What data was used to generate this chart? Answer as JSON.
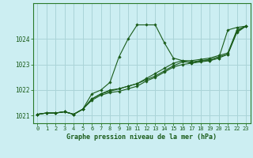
{
  "title": "Graphe pression niveau de la mer (hPa)",
  "background_color": "#cceef2",
  "grid_color": "#aad4d8",
  "line_color": "#1a5c1a",
  "marker_color": "#1a5c1a",
  "xlim": [
    -0.5,
    23.5
  ],
  "ylim": [
    1020.7,
    1025.4
  ],
  "yticks": [
    1021,
    1022,
    1023,
    1024
  ],
  "xticks": [
    0,
    1,
    2,
    3,
    4,
    5,
    6,
    7,
    8,
    9,
    10,
    11,
    12,
    13,
    14,
    15,
    16,
    17,
    18,
    19,
    20,
    21,
    22,
    23
  ],
  "series": [
    [
      1021.05,
      1021.1,
      1021.1,
      1021.15,
      1021.05,
      1021.25,
      1021.85,
      1022.0,
      1022.3,
      1023.3,
      1024.0,
      1024.55,
      1024.55,
      1024.55,
      1023.85,
      1023.25,
      1023.15,
      1023.05,
      1023.15,
      1023.15,
      1023.25,
      1024.35,
      1024.45,
      1024.5
    ],
    [
      1021.05,
      1021.1,
      1021.1,
      1021.15,
      1021.05,
      1021.25,
      1021.65,
      1021.85,
      1022.0,
      1022.05,
      1022.15,
      1022.25,
      1022.45,
      1022.65,
      1022.85,
      1023.05,
      1023.15,
      1023.15,
      1023.2,
      1023.25,
      1023.35,
      1023.45,
      1024.35,
      1024.5
    ],
    [
      1021.05,
      1021.1,
      1021.1,
      1021.15,
      1021.05,
      1021.25,
      1021.65,
      1021.85,
      1021.95,
      1022.05,
      1022.15,
      1022.25,
      1022.4,
      1022.55,
      1022.75,
      1022.95,
      1023.1,
      1023.1,
      1023.15,
      1023.2,
      1023.3,
      1023.4,
      1024.3,
      1024.5
    ],
    [
      1021.05,
      1021.1,
      1021.1,
      1021.15,
      1021.05,
      1021.25,
      1021.6,
      1021.8,
      1021.9,
      1021.95,
      1022.05,
      1022.15,
      1022.35,
      1022.5,
      1022.7,
      1022.9,
      1023.0,
      1023.05,
      1023.1,
      1023.15,
      1023.25,
      1023.4,
      1024.25,
      1024.5
    ]
  ]
}
